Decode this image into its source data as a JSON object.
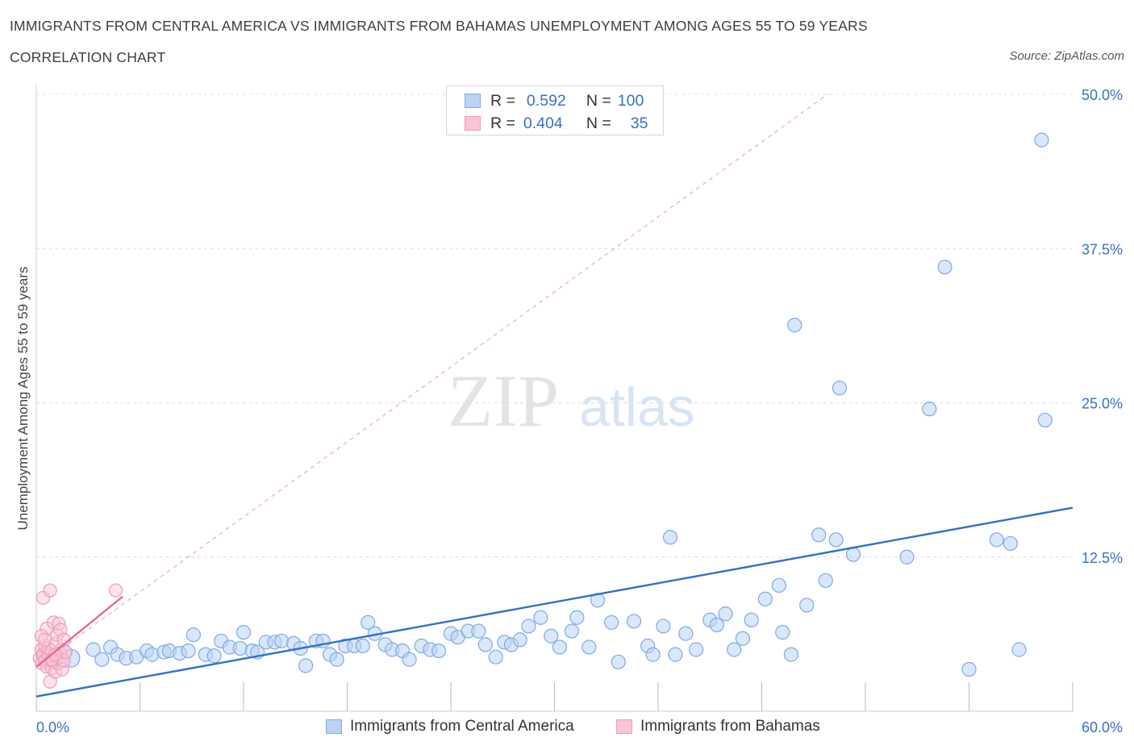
{
  "title": "IMMIGRANTS FROM CENTRAL AMERICA VS IMMIGRANTS FROM BAHAMAS UNEMPLOYMENT AMONG AGES 55 TO 59 YEARS",
  "subtitle": "CORRELATION CHART",
  "source": "Source: ZipAtlas.com",
  "watermark": {
    "zip": "ZIP",
    "atlas": "atlas"
  },
  "legend": {
    "rows": [
      {
        "r_label": "R =",
        "r_value": "0.592",
        "n_label": "N =",
        "n_value": "100"
      },
      {
        "r_label": "R =",
        "r_value": "0.404",
        "n_label": "N =",
        "n_value": "35"
      }
    ]
  },
  "colors": {
    "blue_fill": "#b9d3f5",
    "blue_stroke": "#7fa9e3",
    "blue_line": "#2f6fcf",
    "pink_fill": "#f9c6d6",
    "pink_stroke": "#ef9ab6",
    "pink_line": "#e8678f",
    "tick_label": "#3571c6",
    "grid": "#dcdcdc"
  },
  "chart_data": {
    "type": "scatter",
    "ylabel": "Unemployment Among Ages 55 to 59 years",
    "xlim": [
      0,
      60
    ],
    "ylim": [
      0,
      50
    ],
    "x_tick_labels": [
      "0.0%",
      "60.0%"
    ],
    "y_ticks": [
      12.5,
      25.0,
      37.5,
      50.0
    ],
    "y_tick_labels": [
      "12.5%",
      "25.0%",
      "37.5%",
      "50.0%"
    ],
    "grid": "horizontal dashed",
    "series": [
      {
        "name": "Immigrants from Central America",
        "color": "#b9d3f5",
        "trend": {
          "x": [
            0,
            60
          ],
          "y": [
            1.2,
            16.5
          ],
          "style": "solid"
        },
        "points": [
          [
            0.5,
            4.5
          ],
          [
            1.0,
            4.2
          ],
          [
            1.5,
            4.8
          ],
          [
            2.0,
            4.3
          ],
          [
            3.3,
            5.0
          ],
          [
            3.8,
            4.2
          ],
          [
            4.3,
            5.2
          ],
          [
            4.7,
            4.6
          ],
          [
            5.2,
            4.3
          ],
          [
            5.8,
            4.4
          ],
          [
            6.4,
            4.9
          ],
          [
            6.7,
            4.6
          ],
          [
            7.4,
            4.8
          ],
          [
            7.7,
            4.9
          ],
          [
            8.3,
            4.7
          ],
          [
            8.8,
            4.9
          ],
          [
            9.1,
            6.2
          ],
          [
            9.8,
            4.6
          ],
          [
            10.3,
            4.5
          ],
          [
            10.7,
            5.7
          ],
          [
            11.2,
            5.2
          ],
          [
            11.8,
            5.1
          ],
          [
            12.0,
            6.4
          ],
          [
            12.5,
            4.9
          ],
          [
            12.8,
            4.8
          ],
          [
            13.3,
            5.6
          ],
          [
            13.8,
            5.6
          ],
          [
            14.2,
            5.7
          ],
          [
            14.9,
            5.5
          ],
          [
            15.3,
            5.1
          ],
          [
            15.6,
            3.7
          ],
          [
            16.2,
            5.7
          ],
          [
            16.6,
            5.7
          ],
          [
            17.0,
            4.6
          ],
          [
            17.4,
            4.2
          ],
          [
            17.9,
            5.3
          ],
          [
            18.4,
            5.3
          ],
          [
            18.9,
            5.3
          ],
          [
            19.2,
            7.2
          ],
          [
            19.6,
            6.3
          ],
          [
            20.2,
            5.4
          ],
          [
            20.6,
            5.0
          ],
          [
            21.2,
            4.9
          ],
          [
            21.6,
            4.2
          ],
          [
            22.3,
            5.3
          ],
          [
            22.8,
            5.0
          ],
          [
            23.3,
            4.9
          ],
          [
            24.0,
            6.3
          ],
          [
            24.4,
            6.0
          ],
          [
            25.0,
            6.5
          ],
          [
            25.6,
            6.5
          ],
          [
            26.0,
            5.4
          ],
          [
            26.6,
            4.4
          ],
          [
            27.1,
            5.6
          ],
          [
            27.5,
            5.4
          ],
          [
            28.0,
            5.8
          ],
          [
            28.5,
            6.9
          ],
          [
            29.2,
            7.6
          ],
          [
            29.8,
            6.1
          ],
          [
            30.3,
            5.2
          ],
          [
            31.0,
            6.5
          ],
          [
            31.3,
            7.6
          ],
          [
            32.0,
            5.2
          ],
          [
            32.5,
            9.0
          ],
          [
            33.3,
            7.2
          ],
          [
            33.7,
            4.0
          ],
          [
            34.6,
            7.3
          ],
          [
            35.4,
            5.3
          ],
          [
            35.7,
            4.6
          ],
          [
            36.3,
            6.9
          ],
          [
            36.7,
            14.1
          ],
          [
            37.0,
            4.6
          ],
          [
            37.6,
            6.3
          ],
          [
            38.2,
            5.0
          ],
          [
            39.0,
            7.4
          ],
          [
            39.4,
            7.0
          ],
          [
            39.9,
            7.9
          ],
          [
            40.4,
            5.0
          ],
          [
            40.9,
            5.9
          ],
          [
            41.4,
            7.4
          ],
          [
            42.2,
            9.1
          ],
          [
            43.0,
            10.2
          ],
          [
            43.2,
            6.4
          ],
          [
            43.7,
            4.6
          ],
          [
            43.9,
            31.3
          ],
          [
            44.6,
            8.6
          ],
          [
            45.3,
            14.3
          ],
          [
            45.7,
            10.6
          ],
          [
            46.3,
            13.9
          ],
          [
            46.5,
            26.2
          ],
          [
            47.3,
            12.7
          ],
          [
            50.4,
            12.5
          ],
          [
            51.7,
            24.5
          ],
          [
            54.0,
            3.4
          ],
          [
            55.6,
            13.9
          ],
          [
            56.4,
            13.6
          ],
          [
            52.6,
            36.0
          ],
          [
            58.2,
            46.3
          ],
          [
            58.4,
            23.6
          ],
          [
            56.9,
            5.0
          ]
        ]
      },
      {
        "name": "Immigrants from Bahamas",
        "color": "#f9c6d6",
        "trend": {
          "x": [
            0,
            5.0
          ],
          "y": [
            3.6,
            9.3
          ],
          "style": "solid",
          "extended": {
            "x": [
              0,
              45.8
            ],
            "y": [
              3.6,
              50.0
            ],
            "style": "dashed"
          }
        },
        "points": [
          [
            0.2,
            4.3
          ],
          [
            0.3,
            5.0
          ],
          [
            0.3,
            3.9
          ],
          [
            0.4,
            4.6
          ],
          [
            0.4,
            9.2
          ],
          [
            0.5,
            5.3
          ],
          [
            0.5,
            4.1
          ],
          [
            0.6,
            6.7
          ],
          [
            0.6,
            3.6
          ],
          [
            0.7,
            4.5
          ],
          [
            0.7,
            5.1
          ],
          [
            0.8,
            9.8
          ],
          [
            0.8,
            2.4
          ],
          [
            0.9,
            4.9
          ],
          [
            0.9,
            3.5
          ],
          [
            1.0,
            7.2
          ],
          [
            1.0,
            4.0
          ],
          [
            1.1,
            5.5
          ],
          [
            1.1,
            3.2
          ],
          [
            1.2,
            6.2
          ],
          [
            1.2,
            4.4
          ],
          [
            1.3,
            7.1
          ],
          [
            1.3,
            3.9
          ],
          [
            1.4,
            6.6
          ],
          [
            1.4,
            4.7
          ],
          [
            1.5,
            4.2
          ],
          [
            1.5,
            3.4
          ],
          [
            1.6,
            5.8
          ],
          [
            1.6,
            4.1
          ],
          [
            1.7,
            4.8
          ],
          [
            0.3,
            6.1
          ],
          [
            0.5,
            5.8
          ],
          [
            0.9,
            4.2
          ],
          [
            4.6,
            9.8
          ],
          [
            1.1,
            4.6
          ]
        ]
      }
    ]
  },
  "bottom_legend": [
    "Immigrants from Central America",
    "Immigrants from Bahamas"
  ]
}
